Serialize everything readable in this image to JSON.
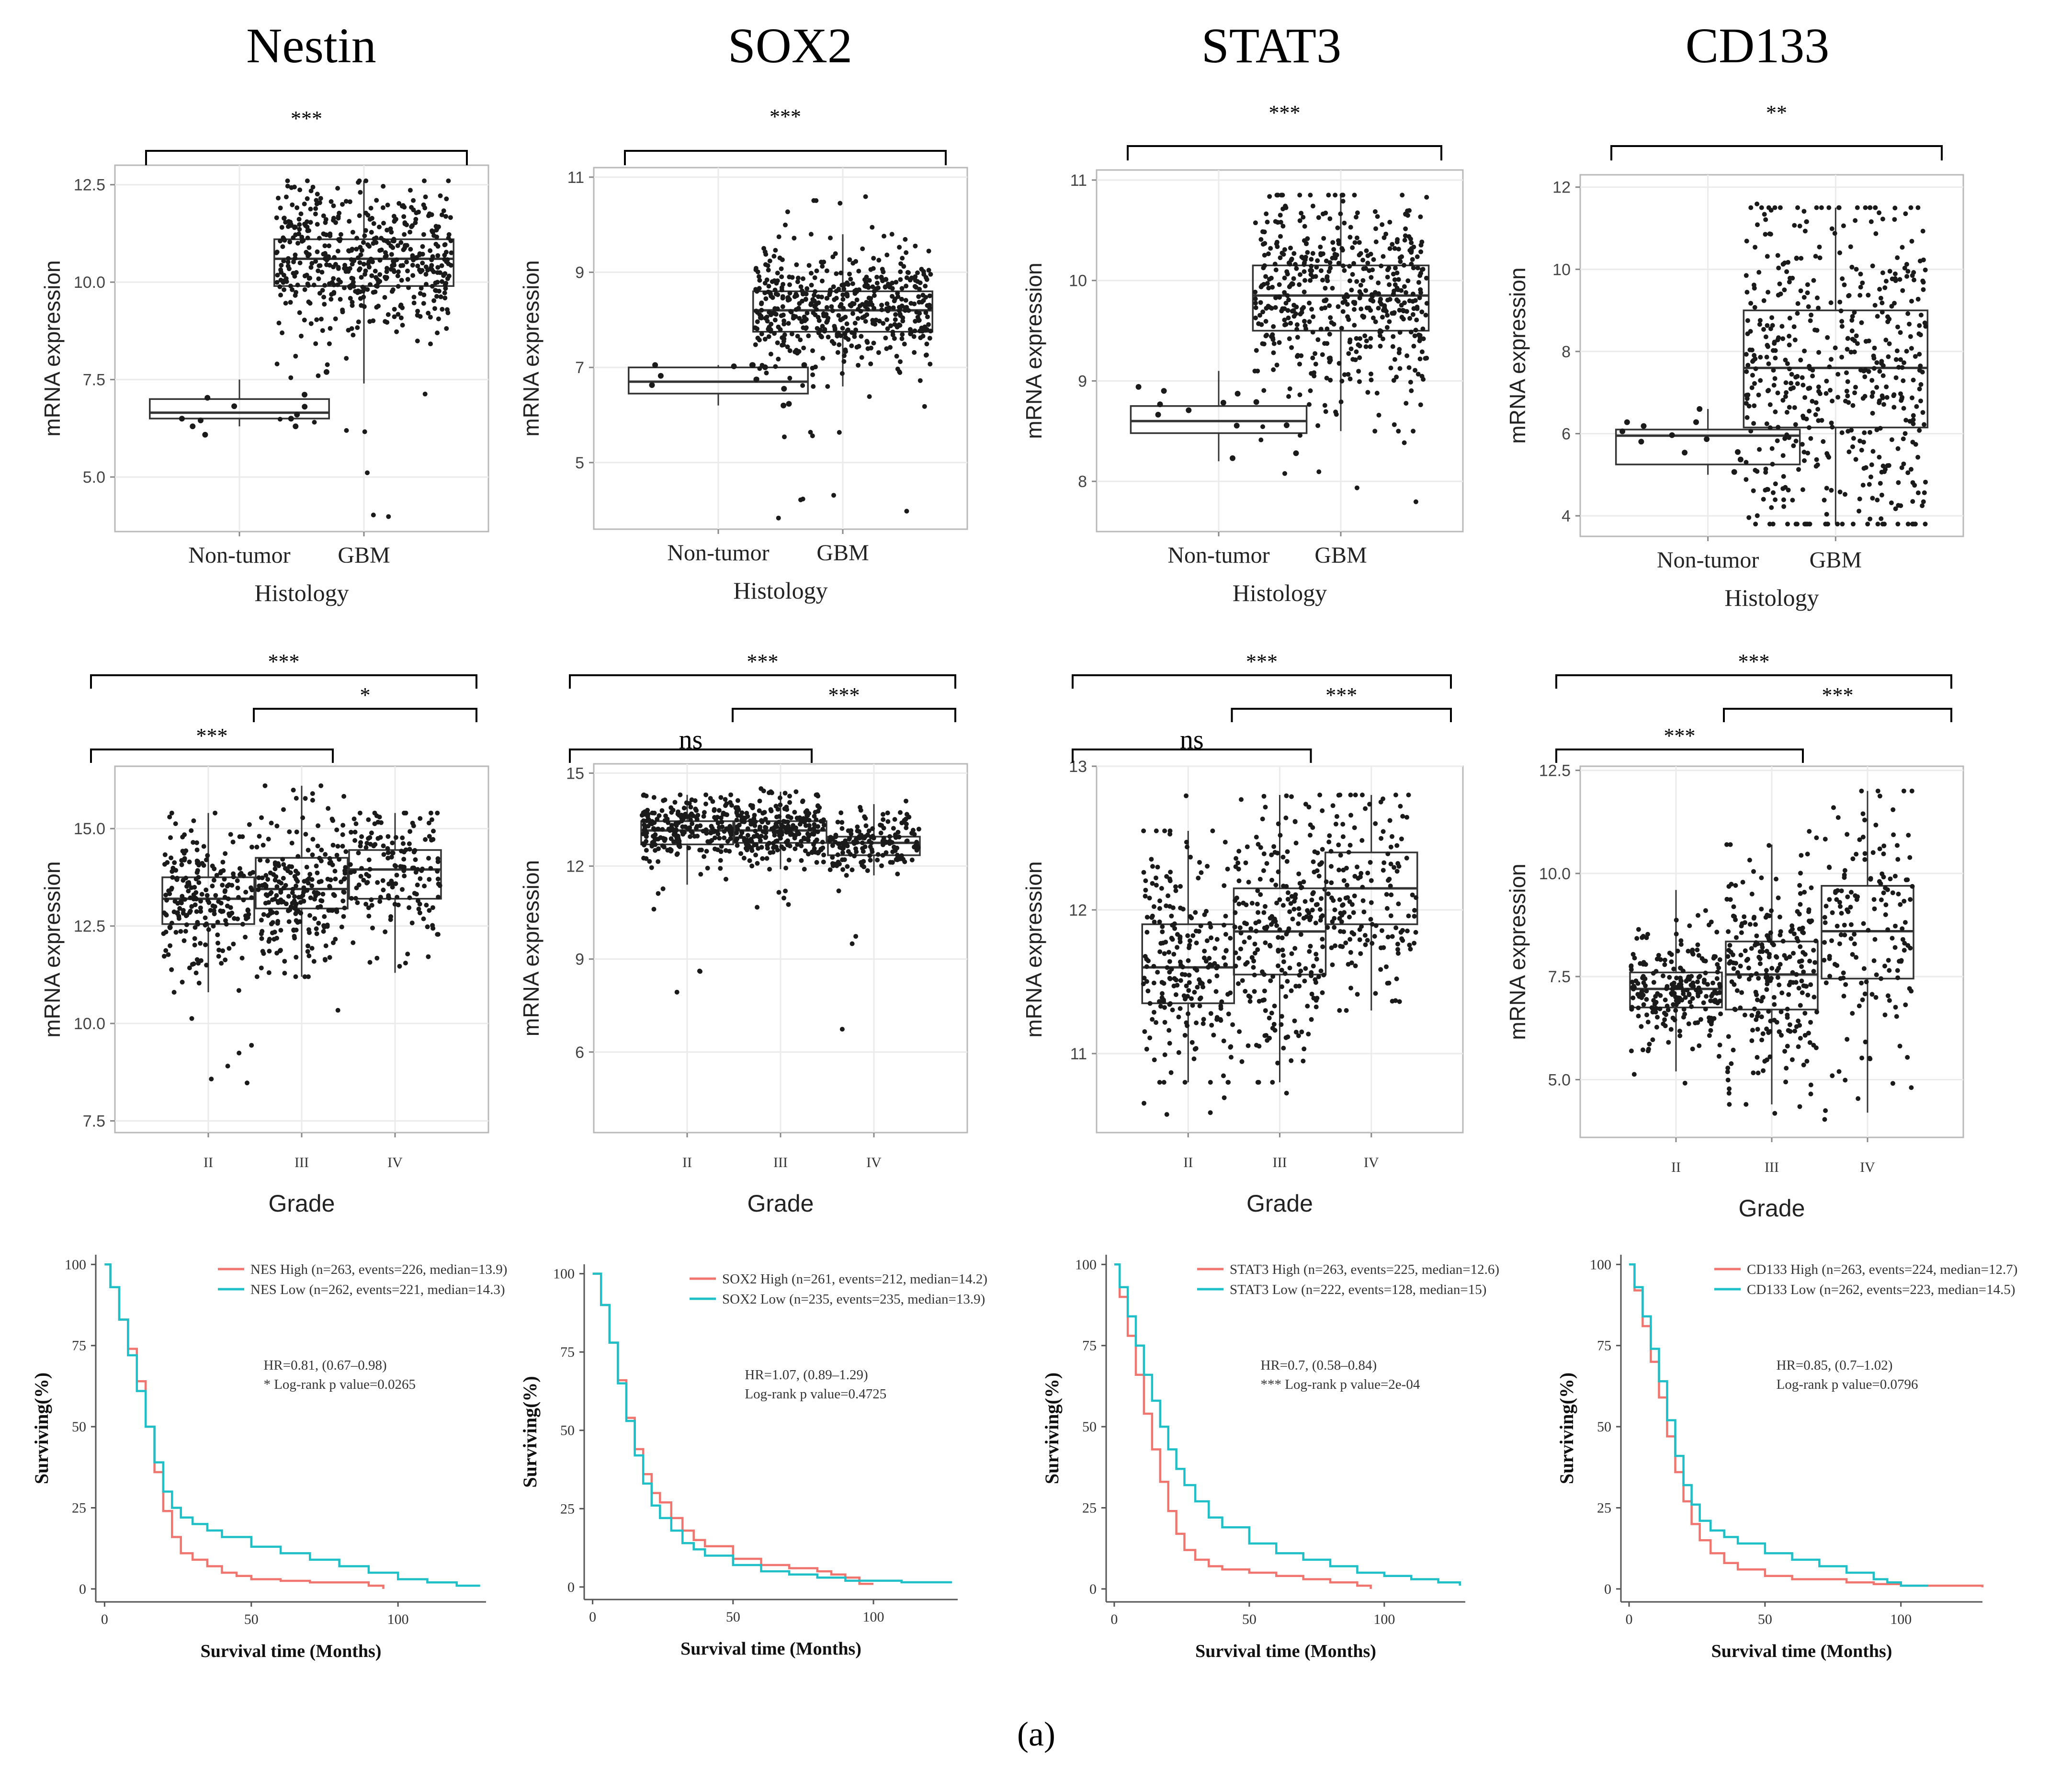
{
  "figure": {
    "genes": [
      "Nestin",
      "SOX2",
      "STAT3",
      "CD133"
    ],
    "panel_label": "(a)",
    "axis_text": {
      "y_expression": "mRNA expression",
      "x_histology": "Histology",
      "x_grade": "Grade",
      "y_surv": "Surviving(%)",
      "x_surv": "Survival time (Months)"
    }
  },
  "colors": {
    "high": "#f0756e",
    "low": "#1ebfc7",
    "point": "#1a1a1a",
    "box": "#333333",
    "grid": "#ebebeb"
  },
  "chart_data": [
    {
      "type": "boxplot",
      "gene": "Nestin",
      "xlabel": "Histology",
      "ylabel": "mRNA expression",
      "categories": [
        "Non-tumor",
        "GBM"
      ],
      "ylim": [
        3.6,
        13.0
      ],
      "yticks": [
        5.0,
        7.5,
        10.0,
        12.5
      ],
      "yticklabels": [
        "5.0",
        "7.5",
        "10.0",
        "12.5"
      ],
      "boxes": [
        {
          "min": 6.3,
          "q1": 6.5,
          "median": 6.65,
          "q3": 7.0,
          "max": 7.5,
          "n": 12,
          "pmin": 5.3,
          "pmax": 8.1
        },
        {
          "min": 7.4,
          "q1": 9.9,
          "median": 10.6,
          "q3": 11.1,
          "max": 12.6,
          "n": 520,
          "pmin": 3.9,
          "pmax": 12.6
        }
      ],
      "brackets": [
        {
          "from": 0,
          "to": 1,
          "label": "***"
        }
      ]
    },
    {
      "type": "boxplot",
      "gene": "SOX2",
      "xlabel": "Histology",
      "ylabel": "mRNA expression",
      "categories": [
        "Non-tumor",
        "GBM"
      ],
      "ylim": [
        3.6,
        11.2
      ],
      "yticks": [
        5,
        7,
        9,
        11
      ],
      "yticklabels": [
        "5",
        "7",
        "9",
        "11"
      ],
      "boxes": [
        {
          "min": 6.2,
          "q1": 6.45,
          "median": 6.7,
          "q3": 7.0,
          "max": 7.05,
          "n": 12,
          "pmin": 6.1,
          "pmax": 7.05
        },
        {
          "min": 6.6,
          "q1": 7.75,
          "median": 8.2,
          "q3": 8.6,
          "max": 9.8,
          "n": 520,
          "pmin": 3.8,
          "pmax": 10.6
        }
      ],
      "brackets": [
        {
          "from": 0,
          "to": 1,
          "label": "***"
        }
      ]
    },
    {
      "type": "boxplot",
      "gene": "STAT3",
      "xlabel": "Histology",
      "ylabel": "mRNA expression",
      "categories": [
        "Non-tumor",
        "GBM"
      ],
      "ylim": [
        7.5,
        11.1
      ],
      "yticks": [
        8,
        9,
        10,
        11
      ],
      "yticklabels": [
        "8",
        "9",
        "10",
        "11"
      ],
      "boxes": [
        {
          "min": 8.2,
          "q1": 8.48,
          "median": 8.6,
          "q3": 8.75,
          "max": 9.1,
          "n": 12,
          "pmin": 8.2,
          "pmax": 9.1
        },
        {
          "min": 8.5,
          "q1": 9.5,
          "median": 9.85,
          "q3": 10.15,
          "max": 10.85,
          "n": 520,
          "pmin": 7.7,
          "pmax": 10.85
        }
      ],
      "brackets": [
        {
          "from": 0,
          "to": 1,
          "label": "***"
        }
      ]
    },
    {
      "type": "boxplot",
      "gene": "CD133",
      "xlabel": "Histology",
      "ylabel": "mRNA expression",
      "categories": [
        "Non-tumor",
        "GBM"
      ],
      "ylim": [
        3.5,
        12.3
      ],
      "yticks": [
        4,
        6,
        8,
        10,
        12
      ],
      "yticklabels": [
        "4",
        "6",
        "8",
        "10",
        "12"
      ],
      "boxes": [
        {
          "min": 5.0,
          "q1": 5.25,
          "median": 5.95,
          "q3": 6.1,
          "max": 6.6,
          "n": 12,
          "pmin": 4.95,
          "pmax": 6.6
        },
        {
          "min": 3.8,
          "q1": 6.15,
          "median": 7.6,
          "q3": 9.0,
          "max": 11.5,
          "n": 520,
          "pmin": 3.8,
          "pmax": 11.6
        }
      ],
      "brackets": [
        {
          "from": 0,
          "to": 1,
          "label": "**"
        }
      ]
    },
    {
      "type": "boxplot",
      "gene": "Nestin",
      "xlabel": "Grade",
      "ylabel": "mRNA expression",
      "categories": [
        "II",
        "III",
        "IV"
      ],
      "ylim": [
        7.2,
        16.6
      ],
      "yticks": [
        7.5,
        10.0,
        12.5,
        15.0
      ],
      "yticklabels": [
        "7.5",
        "10.0",
        "12.5",
        "15.0"
      ],
      "boxes": [
        {
          "min": 10.8,
          "q1": 12.55,
          "median": 13.2,
          "q3": 13.75,
          "max": 15.4,
          "n": 230,
          "pmin": 7.7,
          "pmax": 15.5
        },
        {
          "min": 11.2,
          "q1": 12.95,
          "median": 13.45,
          "q3": 14.25,
          "max": 16.1,
          "n": 250,
          "pmin": 10.0,
          "pmax": 16.2
        },
        {
          "min": 11.3,
          "q1": 13.2,
          "median": 13.95,
          "q3": 14.45,
          "max": 15.4,
          "n": 160,
          "pmin": 10.8,
          "pmax": 15.4
        }
      ],
      "brackets": [
        {
          "from": 0,
          "to": 2,
          "label": "***"
        },
        {
          "from": 1,
          "to": 2,
          "label": "*"
        },
        {
          "from": 0,
          "to": 1,
          "label": "***"
        }
      ]
    },
    {
      "type": "boxplot",
      "gene": "SOX2",
      "xlabel": "Grade",
      "ylabel": "mRNA expression",
      "categories": [
        "II",
        "III",
        "IV"
      ],
      "ylim": [
        3.4,
        15.3
      ],
      "yticks": [
        6,
        9,
        12,
        15
      ],
      "yticklabels": [
        "6",
        "9",
        "12",
        "15"
      ],
      "boxes": [
        {
          "min": 11.4,
          "q1": 12.7,
          "median": 13.15,
          "q3": 13.45,
          "max": 14.3,
          "n": 230,
          "pmin": 4.0,
          "pmax": 14.4
        },
        {
          "min": 11.9,
          "q1": 12.75,
          "median": 13.15,
          "q3": 13.45,
          "max": 14.4,
          "n": 250,
          "pmin": 10.6,
          "pmax": 14.5
        },
        {
          "min": 11.7,
          "q1": 12.35,
          "median": 12.75,
          "q3": 12.95,
          "max": 14.0,
          "n": 160,
          "pmin": 6.4,
          "pmax": 14.1
        }
      ],
      "brackets": [
        {
          "from": 0,
          "to": 2,
          "label": "***"
        },
        {
          "from": 1,
          "to": 2,
          "label": "***"
        },
        {
          "from": 0,
          "to": 1,
          "label": "ns"
        }
      ]
    },
    {
      "type": "boxplot",
      "gene": "STAT3",
      "xlabel": "Grade",
      "ylabel": "mRNA expression",
      "categories": [
        "II",
        "III",
        "IV"
      ],
      "ylim": [
        10.45,
        13.0
      ],
      "yticks": [
        11,
        12,
        13
      ],
      "yticklabels": [
        "11",
        "12",
        "13"
      ],
      "boxes": [
        {
          "min": 10.8,
          "q1": 11.35,
          "median": 11.6,
          "q3": 11.9,
          "max": 12.55,
          "n": 230,
          "pmin": 10.5,
          "pmax": 12.9
        },
        {
          "min": 10.8,
          "q1": 11.55,
          "median": 11.85,
          "q3": 12.15,
          "max": 12.8,
          "n": 250,
          "pmin": 10.7,
          "pmax": 12.85
        },
        {
          "min": 11.3,
          "q1": 11.9,
          "median": 12.15,
          "q3": 12.4,
          "max": 12.8,
          "n": 160,
          "pmin": 11.3,
          "pmax": 12.8
        }
      ],
      "brackets": [
        {
          "from": 0,
          "to": 2,
          "label": "***"
        },
        {
          "from": 1,
          "to": 2,
          "label": "***"
        },
        {
          "from": 0,
          "to": 1,
          "label": "ns"
        }
      ]
    },
    {
      "type": "boxplot",
      "gene": "CD133",
      "xlabel": "Grade",
      "ylabel": "mRNA expression",
      "categories": [
        "II",
        "III",
        "IV"
      ],
      "ylim": [
        3.6,
        12.6
      ],
      "yticks": [
        5.0,
        7.5,
        10.0,
        12.5
      ],
      "yticklabels": [
        "5.0",
        "7.5",
        "10.0",
        "12.5"
      ],
      "boxes": [
        {
          "min": 5.2,
          "q1": 6.75,
          "median": 7.2,
          "q3": 7.6,
          "max": 9.6,
          "n": 230,
          "pmin": 4.8,
          "pmax": 9.7
        },
        {
          "min": 4.4,
          "q1": 6.7,
          "median": 7.55,
          "q3": 8.35,
          "max": 10.7,
          "n": 250,
          "pmin": 3.8,
          "pmax": 11.3
        },
        {
          "min": 4.2,
          "q1": 7.45,
          "median": 8.6,
          "q3": 9.7,
          "max": 12.0,
          "n": 160,
          "pmin": 3.8,
          "pmax": 12.0
        }
      ],
      "brackets": [
        {
          "from": 0,
          "to": 2,
          "label": "***"
        },
        {
          "from": 1,
          "to": 2,
          "label": "***"
        },
        {
          "from": 0,
          "to": 1,
          "label": "***"
        }
      ]
    },
    {
      "type": "line",
      "subtype": "kaplan-meier",
      "gene": "Nestin",
      "xlabel": "Survival time (Months)",
      "ylabel": "Surviving(%)",
      "xlim": [
        -3,
        130
      ],
      "ylim": [
        -4,
        103
      ],
      "xticks": [
        0,
        50,
        100
      ],
      "yticks": [
        0,
        25,
        50,
        75,
        100
      ],
      "legend": [
        "NES High (n=263, events=226, median=13.9)",
        "NES Low (n=262, events=221, median=14.3)"
      ],
      "stats": [
        "HR=0.81, (0.67–0.98)",
        "* Log-rank p value=0.0265"
      ],
      "series": [
        {
          "name": "NES High",
          "color": "high",
          "t": [
            0,
            2,
            5,
            8,
            11,
            14,
            17,
            20,
            23,
            26,
            30,
            35,
            40,
            45,
            50,
            60,
            70,
            80,
            90,
            95
          ],
          "s": [
            100,
            93,
            83,
            74,
            64,
            50,
            36,
            24,
            16,
            11,
            9,
            7,
            5,
            4,
            3,
            2.5,
            2,
            2,
            1,
            0
          ]
        },
        {
          "name": "NES Low",
          "color": "low",
          "t": [
            0,
            2,
            5,
            8,
            11,
            14,
            17,
            20,
            23,
            26,
            30,
            35,
            40,
            50,
            60,
            70,
            80,
            90,
            100,
            110,
            120,
            128
          ],
          "s": [
            100,
            93,
            83,
            72,
            61,
            50,
            39,
            30,
            25,
            22,
            20,
            18,
            16,
            13,
            11,
            9,
            7,
            5,
            3,
            2,
            1,
            1
          ]
        }
      ]
    },
    {
      "type": "line",
      "subtype": "kaplan-meier",
      "gene": "SOX2",
      "xlabel": "Survival time (Months)",
      "ylabel": "Surviving(%)",
      "xlim": [
        -3,
        130
      ],
      "ylim": [
        -4,
        103
      ],
      "xticks": [
        0,
        50,
        100
      ],
      "yticks": [
        0,
        25,
        50,
        75,
        100
      ],
      "legend": [
        "SOX2 High (n=261, events=212, median=14.2)",
        "SOX2 Low (n=235, events=235, median=13.9)"
      ],
      "stats": [
        "HR=1.07, (0.89–1.29)",
        "Log-rank p value=0.4725"
      ],
      "series": [
        {
          "name": "SOX2 High",
          "color": "high",
          "t": [
            0,
            3,
            6,
            9,
            12,
            15,
            18,
            21,
            24,
            28,
            32,
            36,
            40,
            50,
            60,
            70,
            80,
            85,
            90,
            95,
            100
          ],
          "s": [
            100,
            90,
            78,
            66,
            54,
            44,
            36,
            30,
            27,
            22,
            18,
            15,
            13,
            9,
            7,
            6,
            5,
            4,
            3,
            1,
            1
          ]
        },
        {
          "name": "SOX2 Low",
          "color": "low",
          "t": [
            0,
            3,
            6,
            9,
            12,
            15,
            18,
            21,
            24,
            28,
            32,
            36,
            40,
            50,
            60,
            70,
            80,
            90,
            100,
            110,
            120,
            128
          ],
          "s": [
            100,
            90,
            78,
            65,
            53,
            42,
            33,
            26,
            22,
            18,
            14,
            12,
            10,
            7,
            5,
            4,
            3,
            2,
            2,
            1.5,
            1.5,
            1.5
          ]
        }
      ]
    },
    {
      "type": "line",
      "subtype": "kaplan-meier",
      "gene": "STAT3",
      "xlabel": "Survival time (Months)",
      "ylabel": "Surviving(%)",
      "xlim": [
        -3,
        130
      ],
      "ylim": [
        -4,
        103
      ],
      "xticks": [
        0,
        50,
        100
      ],
      "yticks": [
        0,
        25,
        50,
        75,
        100
      ],
      "legend": [
        "STAT3 High (n=263, events=225, median=12.6)",
        "STAT3 Low (n=222, events=128, median=15)"
      ],
      "stats": [
        "HR=0.7, (0.58–0.84)",
        "*** Log-rank p value=2e-04"
      ],
      "series": [
        {
          "name": "STAT3 High",
          "color": "high",
          "t": [
            0,
            2,
            5,
            8,
            11,
            14,
            17,
            20,
            23,
            26,
            30,
            35,
            40,
            50,
            60,
            70,
            80,
            90,
            95
          ],
          "s": [
            100,
            90,
            78,
            66,
            54,
            43,
            33,
            24,
            17,
            12,
            9,
            7,
            6,
            5,
            4,
            3,
            2,
            1,
            0
          ]
        },
        {
          "name": "STAT3 Low",
          "color": "low",
          "t": [
            0,
            2,
            5,
            8,
            11,
            14,
            17,
            20,
            23,
            26,
            30,
            35,
            40,
            50,
            60,
            70,
            80,
            90,
            100,
            110,
            120,
            128
          ],
          "s": [
            100,
            93,
            84,
            75,
            66,
            58,
            50,
            43,
            37,
            32,
            27,
            22,
            19,
            14,
            11,
            9,
            7,
            5,
            4,
            3,
            2,
            1
          ]
        }
      ]
    },
    {
      "type": "line",
      "subtype": "kaplan-meier",
      "gene": "CD133",
      "xlabel": "Survival time (Months)",
      "ylabel": "Surviving(%)",
      "xlim": [
        -3,
        130
      ],
      "ylim": [
        -4,
        103
      ],
      "xticks": [
        0,
        50,
        100
      ],
      "yticks": [
        0,
        25,
        50,
        75,
        100
      ],
      "legend": [
        "CD133 High (n=263, events=224, median=12.7)",
        "CD133 Low (n=262, events=223, median=14.5)"
      ],
      "stats": [
        "HR=0.85, (0.7–1.02)",
        "Log-rank p value=0.0796"
      ],
      "series": [
        {
          "name": "CD133 High",
          "color": "high",
          "t": [
            0,
            2,
            5,
            8,
            11,
            14,
            17,
            20,
            23,
            26,
            30,
            35,
            40,
            50,
            60,
            70,
            80,
            90,
            100,
            110,
            120,
            130
          ],
          "s": [
            100,
            92,
            81,
            70,
            59,
            47,
            36,
            27,
            20,
            15,
            11,
            8,
            6,
            4,
            3,
            3,
            2,
            1.5,
            1,
            1,
            1,
            0.5
          ]
        },
        {
          "name": "CD133 Low",
          "color": "low",
          "t": [
            0,
            2,
            5,
            8,
            11,
            14,
            17,
            20,
            23,
            26,
            30,
            35,
            40,
            50,
            60,
            70,
            80,
            90,
            95,
            100,
            110
          ],
          "s": [
            100,
            93,
            84,
            74,
            64,
            52,
            41,
            32,
            26,
            21,
            18,
            16,
            14,
            11,
            9,
            7,
            5,
            3,
            2,
            1,
            1
          ]
        }
      ]
    }
  ]
}
